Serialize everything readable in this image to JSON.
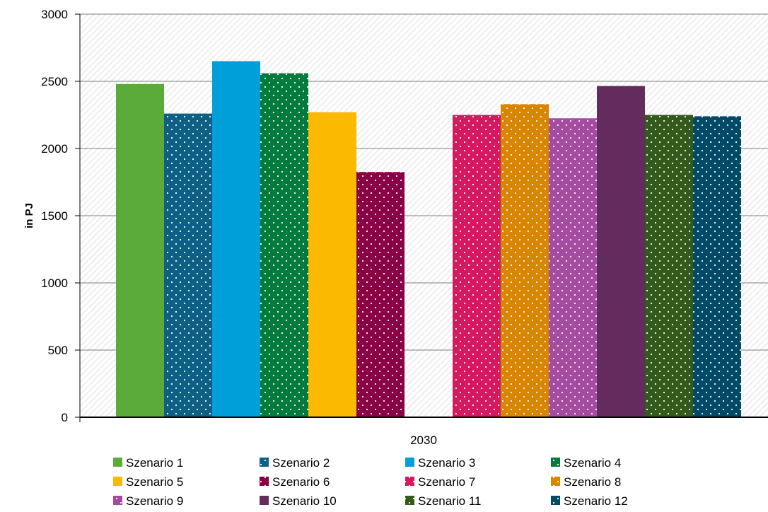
{
  "chart_data": {
    "type": "bar",
    "categories": [
      "2030"
    ],
    "ylabel": "in PJ",
    "xlabel": "",
    "ylim": [
      0,
      3000
    ],
    "yticks": [
      0,
      500,
      1000,
      1500,
      2000,
      2500,
      3000
    ],
    "grid": true,
    "legend_position": "bottom",
    "series": [
      {
        "name": "Szenario 1",
        "values": [
          2480
        ],
        "color": "#5aab3a",
        "dotted": false
      },
      {
        "name": "Szenario 2",
        "values": [
          2260
        ],
        "color": "#0e5f86",
        "dotted": true
      },
      {
        "name": "Szenario 3",
        "values": [
          2650
        ],
        "color": "#009fd9",
        "dotted": false
      },
      {
        "name": "Szenario 4",
        "values": [
          2560
        ],
        "color": "#007a3d",
        "dotted": true
      },
      {
        "name": "Szenario 5",
        "values": [
          2270
        ],
        "color": "#fbb900",
        "dotted": false
      },
      {
        "name": "Szenario 6",
        "values": [
          1825
        ],
        "color": "#8a0045",
        "dotted": true
      },
      {
        "name": "Szenario 7",
        "values": [
          2250
        ],
        "color": "#d6195e",
        "dotted": true
      },
      {
        "name": "Szenario 8",
        "values": [
          2330
        ],
        "color": "#d88500",
        "dotted": true
      },
      {
        "name": "Szenario 9",
        "values": [
          2225
        ],
        "color": "#a54ca0",
        "dotted": true
      },
      {
        "name": "Szenario 10",
        "values": [
          2465
        ],
        "color": "#632b5e",
        "dotted": false
      },
      {
        "name": "Szenario 11",
        "values": [
          2250
        ],
        "color": "#335a1b",
        "dotted": true
      },
      {
        "name": "Szenario 12",
        "values": [
          2240
        ],
        "color": "#004a67",
        "dotted": true
      }
    ]
  }
}
